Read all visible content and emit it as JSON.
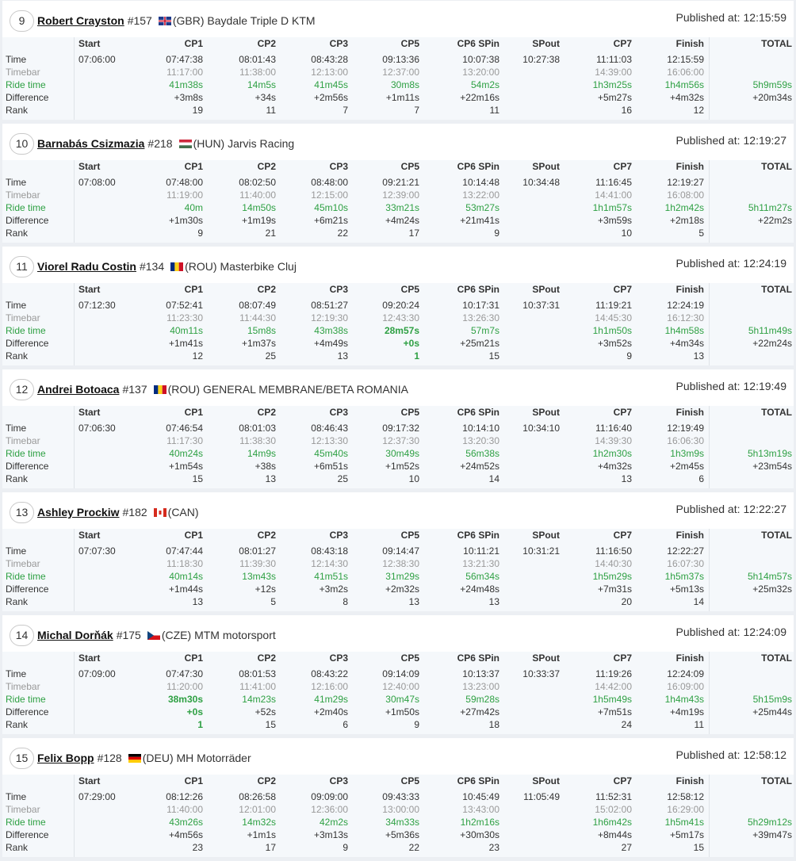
{
  "labels": {
    "time": "Time",
    "timebar": "Timebar",
    "ride_time": "Ride time",
    "difference": "Difference",
    "rank": "Rank",
    "published_prefix": "Published at:"
  },
  "columns": [
    "Start",
    "CP1",
    "CP2",
    "CP3",
    "CP5",
    "CP6 SPin",
    "SPout",
    "CP7",
    "Finish",
    "TOTAL"
  ],
  "colors": {
    "ride_green": "#2ea043",
    "timebar_gray": "#999999",
    "panel_bg": "#f5f8fb"
  },
  "riders": [
    {
      "pos": "9",
      "name": "Robert Crayston",
      "number": "#157",
      "country": "(GBR)",
      "team": "Baydale Triple D KTM",
      "flag": "gb-flag-icon",
      "published": "12:15:59",
      "time": [
        "07:06:00",
        "07:47:38",
        "08:01:43",
        "08:43:28",
        "09:13:36",
        "10:07:38",
        "10:27:38",
        "11:11:03",
        "12:15:59",
        ""
      ],
      "timebar": [
        "",
        "11:17:00",
        "11:38:00",
        "12:13:00",
        "12:37:00",
        "13:20:00",
        "",
        "14:39:00",
        "16:06:00",
        ""
      ],
      "ride": [
        "",
        "41m38s",
        "14m5s",
        "41m45s",
        "30m8s",
        "54m2s",
        "",
        "1h3m25s",
        "1h4m56s",
        "5h9m59s"
      ],
      "diff": [
        "",
        "+3m8s",
        "+34s",
        "+2m56s",
        "+1m11s",
        "+22m16s",
        "",
        "+5m27s",
        "+4m32s",
        "+20m34s"
      ],
      "rank": [
        "",
        "19",
        "11",
        "7",
        "7",
        "11",
        "",
        "16",
        "12",
        ""
      ],
      "best": []
    },
    {
      "pos": "10",
      "name": "Barnabás Csizmazia",
      "number": "#218",
      "country": "(HUN)",
      "team": "Jarvis Racing",
      "flag": "hu-flag-icon",
      "published": "12:19:27",
      "time": [
        "07:08:00",
        "07:48:00",
        "08:02:50",
        "08:48:00",
        "09:21:21",
        "10:14:48",
        "10:34:48",
        "11:16:45",
        "12:19:27",
        ""
      ],
      "timebar": [
        "",
        "11:19:00",
        "11:40:00",
        "12:15:00",
        "12:39:00",
        "13:22:00",
        "",
        "14:41:00",
        "16:08:00",
        ""
      ],
      "ride": [
        "",
        "40m",
        "14m50s",
        "45m10s",
        "33m21s",
        "53m27s",
        "",
        "1h1m57s",
        "1h2m42s",
        "5h11m27s"
      ],
      "diff": [
        "",
        "+1m30s",
        "+1m19s",
        "+6m21s",
        "+4m24s",
        "+21m41s",
        "",
        "+3m59s",
        "+2m18s",
        "+22m2s"
      ],
      "rank": [
        "",
        "9",
        "21",
        "22",
        "17",
        "9",
        "",
        "10",
        "5",
        ""
      ],
      "best": []
    },
    {
      "pos": "11",
      "name": "Viorel Radu Costin",
      "number": "#134",
      "country": "(ROU)",
      "team": "Masterbike Cluj",
      "flag": "ro-flag-icon",
      "published": "12:24:19",
      "time": [
        "07:12:30",
        "07:52:41",
        "08:07:49",
        "08:51:27",
        "09:20:24",
        "10:17:31",
        "10:37:31",
        "11:19:21",
        "12:24:19",
        ""
      ],
      "timebar": [
        "",
        "11:23:30",
        "11:44:30",
        "12:19:30",
        "12:43:30",
        "13:26:30",
        "",
        "14:45:30",
        "16:12:30",
        ""
      ],
      "ride": [
        "",
        "40m11s",
        "15m8s",
        "43m38s",
        "28m57s",
        "57m7s",
        "",
        "1h1m50s",
        "1h4m58s",
        "5h11m49s"
      ],
      "diff": [
        "",
        "+1m41s",
        "+1m37s",
        "+4m49s",
        "+0s",
        "+25m21s",
        "",
        "+3m52s",
        "+4m34s",
        "+22m24s"
      ],
      "rank": [
        "",
        "12",
        "25",
        "13",
        "1",
        "15",
        "",
        "9",
        "13",
        ""
      ],
      "best": [
        4
      ]
    },
    {
      "pos": "12",
      "name": "Andrei Botoaca",
      "number": "#137",
      "country": "(ROU)",
      "team": "GENERAL MEMBRANE/BETA ROMANIA",
      "flag": "ro-flag-icon",
      "published": "12:19:49",
      "time": [
        "07:06:30",
        "07:46:54",
        "08:01:03",
        "08:46:43",
        "09:17:32",
        "10:14:10",
        "10:34:10",
        "11:16:40",
        "12:19:49",
        ""
      ],
      "timebar": [
        "",
        "11:17:30",
        "11:38:30",
        "12:13:30",
        "12:37:30",
        "13:20:30",
        "",
        "14:39:30",
        "16:06:30",
        ""
      ],
      "ride": [
        "",
        "40m24s",
        "14m9s",
        "45m40s",
        "30m49s",
        "56m38s",
        "",
        "1h2m30s",
        "1h3m9s",
        "5h13m19s"
      ],
      "diff": [
        "",
        "+1m54s",
        "+38s",
        "+6m51s",
        "+1m52s",
        "+24m52s",
        "",
        "+4m32s",
        "+2m45s",
        "+23m54s"
      ],
      "rank": [
        "",
        "15",
        "13",
        "25",
        "10",
        "14",
        "",
        "13",
        "6",
        ""
      ],
      "best": []
    },
    {
      "pos": "13",
      "name": "Ashley Prockiw",
      "number": "#182",
      "country": "(CAN)",
      "team": "",
      "flag": "ca-flag-icon",
      "published": "12:22:27",
      "time": [
        "07:07:30",
        "07:47:44",
        "08:01:27",
        "08:43:18",
        "09:14:47",
        "10:11:21",
        "10:31:21",
        "11:16:50",
        "12:22:27",
        ""
      ],
      "timebar": [
        "",
        "11:18:30",
        "11:39:30",
        "12:14:30",
        "12:38:30",
        "13:21:30",
        "",
        "14:40:30",
        "16:07:30",
        ""
      ],
      "ride": [
        "",
        "40m14s",
        "13m43s",
        "41m51s",
        "31m29s",
        "56m34s",
        "",
        "1h5m29s",
        "1h5m37s",
        "5h14m57s"
      ],
      "diff": [
        "",
        "+1m44s",
        "+12s",
        "+3m2s",
        "+2m32s",
        "+24m48s",
        "",
        "+7m31s",
        "+5m13s",
        "+25m32s"
      ],
      "rank": [
        "",
        "13",
        "5",
        "8",
        "13",
        "13",
        "",
        "20",
        "14",
        ""
      ],
      "best": []
    },
    {
      "pos": "14",
      "name": "Michal Dorňák",
      "number": "#175",
      "country": "(CZE)",
      "team": "MTM motorsport",
      "flag": "cz-flag-icon",
      "published": "12:24:09",
      "time": [
        "07:09:00",
        "07:47:30",
        "08:01:53",
        "08:43:22",
        "09:14:09",
        "10:13:37",
        "10:33:37",
        "11:19:26",
        "12:24:09",
        ""
      ],
      "timebar": [
        "",
        "11:20:00",
        "11:41:00",
        "12:16:00",
        "12:40:00",
        "13:23:00",
        "",
        "14:42:00",
        "16:09:00",
        ""
      ],
      "ride": [
        "",
        "38m30s",
        "14m23s",
        "41m29s",
        "30m47s",
        "59m28s",
        "",
        "1h5m49s",
        "1h4m43s",
        "5h15m9s"
      ],
      "diff": [
        "",
        "+0s",
        "+52s",
        "+2m40s",
        "+1m50s",
        "+27m42s",
        "",
        "+7m51s",
        "+4m19s",
        "+25m44s"
      ],
      "rank": [
        "",
        "1",
        "15",
        "6",
        "9",
        "18",
        "",
        "24",
        "11",
        ""
      ],
      "best": [
        1
      ]
    },
    {
      "pos": "15",
      "name": "Felix Bopp",
      "number": "#128",
      "country": "(DEU)",
      "team": "MH Motorräder",
      "flag": "de-flag-icon",
      "published": "12:58:12",
      "time": [
        "07:29:00",
        "08:12:26",
        "08:26:58",
        "09:09:00",
        "09:43:33",
        "10:45:49",
        "11:05:49",
        "11:52:31",
        "12:58:12",
        ""
      ],
      "timebar": [
        "",
        "11:40:00",
        "12:01:00",
        "12:36:00",
        "13:00:00",
        "13:43:00",
        "",
        "15:02:00",
        "16:29:00",
        ""
      ],
      "ride": [
        "",
        "43m26s",
        "14m32s",
        "42m2s",
        "34m33s",
        "1h2m16s",
        "",
        "1h6m42s",
        "1h5m41s",
        "5h29m12s"
      ],
      "diff": [
        "",
        "+4m56s",
        "+1m1s",
        "+3m13s",
        "+5m36s",
        "+30m30s",
        "",
        "+8m44s",
        "+5m17s",
        "+39m47s"
      ],
      "rank": [
        "",
        "23",
        "17",
        "9",
        "22",
        "23",
        "",
        "27",
        "15",
        ""
      ],
      "best": []
    }
  ]
}
